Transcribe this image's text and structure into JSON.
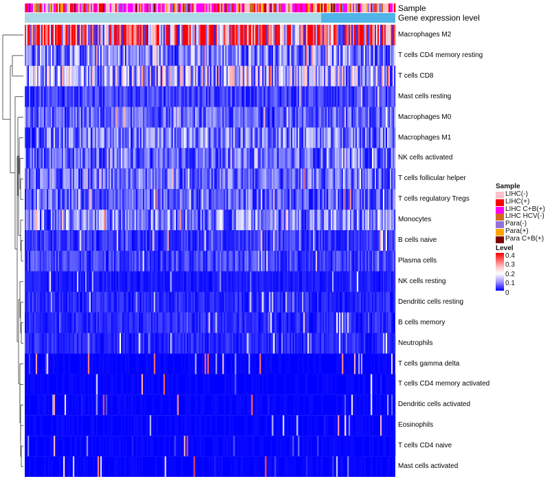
{
  "chart_data": {
    "type": "heatmap",
    "title": "",
    "annotation_rows": [
      "Sample",
      "Gene expression level"
    ],
    "rows": [
      "Macrophages M2",
      "T cells CD4 memory resting",
      "T cells CD8",
      "Mast cells resting",
      "Macrophages M0",
      "Macrophages M1",
      "NK cells activated",
      "T cells follicular helper",
      "T cells regulatory  Tregs",
      "Monocytes",
      "B cells naive",
      "Plasma cells",
      "NK cells resting",
      "Dendritic cells resting",
      "B cells memory",
      "Neutrophils",
      "T cells gamma delta",
      "T cells CD4 memory activated",
      "Dendritic cells activated",
      "Eosinophils",
      "T cells CD4 naive",
      "Mast cells activated"
    ],
    "row_mean_levels": [
      0.3,
      0.1,
      0.14,
      0.05,
      0.07,
      0.09,
      0.08,
      0.08,
      0.07,
      0.1,
      0.04,
      0.05,
      0.02,
      0.03,
      0.03,
      0.03,
      0.01,
      0.01,
      0.01,
      0.01,
      0.01,
      0.01
    ],
    "sample_legend": {
      "title": "Sample",
      "items": [
        {
          "label": "LIHC(-)",
          "color": "#ffc0cb"
        },
        {
          "label": "LIHC(+)",
          "color": "#ff0000"
        },
        {
          "label": "LIHC C+B(+)",
          "color": "#ff00ff"
        },
        {
          "label": "LIHC HCV(-)",
          "color": "#d2691e"
        },
        {
          "label": "Para(-)",
          "color": "#9370db"
        },
        {
          "label": "Para(+)",
          "color": "#ffa500"
        },
        {
          "label": "Para C+B(+)",
          "color": "#800000"
        }
      ]
    },
    "level_legend": {
      "title": "Level",
      "ticks": [
        "0.4",
        "0.3",
        "0.2",
        "0.1",
        "0"
      ],
      "range": [
        0,
        0.4
      ],
      "colors": [
        "#0000ff",
        "#ffffff",
        "#ff0000"
      ]
    },
    "expression_bar_colors": [
      "#add8e6",
      "#4fb3e8"
    ],
    "expression_bar_split": 0.8,
    "n_samples": 270
  }
}
